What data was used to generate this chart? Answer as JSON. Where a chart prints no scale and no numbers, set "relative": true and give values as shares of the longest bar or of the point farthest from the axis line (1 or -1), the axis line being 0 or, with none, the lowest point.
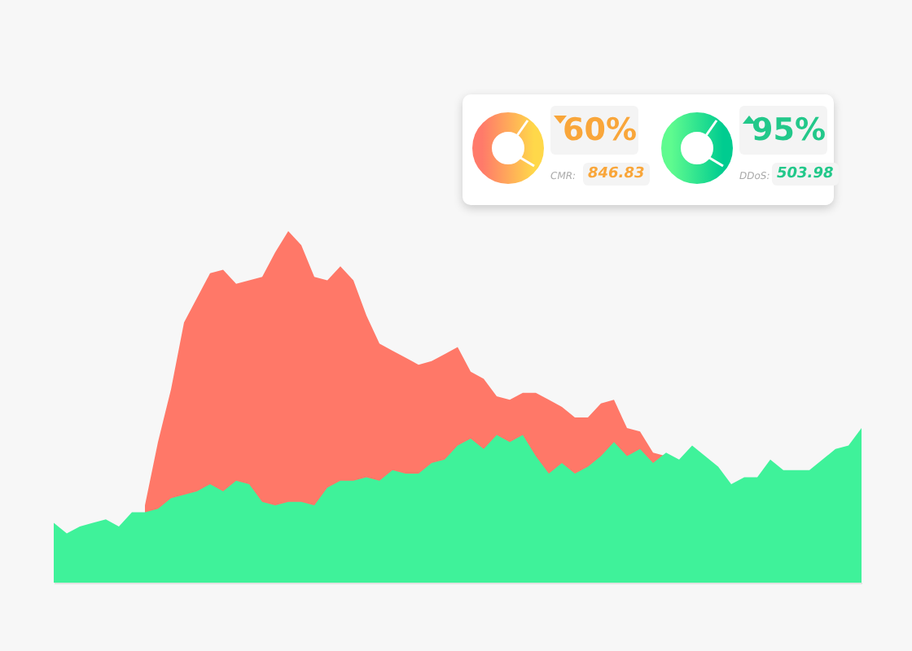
{
  "chart_data": [
    {
      "type": "area",
      "relative": true,
      "categories": [
        null,
        null,
        null,
        null,
        null,
        null,
        null,
        null,
        null,
        null,
        null,
        null,
        null,
        null,
        null,
        null,
        null,
        null,
        null,
        null,
        null,
        null,
        null,
        null,
        null,
        null,
        null,
        null,
        null,
        null,
        null,
        null,
        null,
        null,
        null,
        null,
        null,
        null,
        null,
        null,
        null,
        null,
        null,
        null,
        null,
        null,
        null,
        null,
        null,
        null,
        null,
        null,
        null,
        null,
        null,
        null,
        null,
        null,
        null,
        null,
        null,
        null,
        null
      ],
      "series": [
        {
          "color": "#ff7868",
          "values": [
            null,
            null,
            null,
            null,
            null,
            null,
            null,
            0.22,
            0.4,
            0.55,
            0.74,
            0.81,
            0.88,
            0.89,
            0.85,
            0.86,
            0.87,
            0.94,
            1,
            0.96,
            0.87,
            0.86,
            0.9,
            0.86,
            0.76,
            0.68,
            0.66,
            0.64,
            0.62,
            0.63,
            0.65,
            0.67,
            0.6,
            0.58,
            0.53,
            0.52,
            0.54,
            0.54,
            0.52,
            0.5,
            0.47,
            0.47,
            0.51,
            0.52,
            0.44,
            0.43,
            0.37,
            0.36,
            null,
            null,
            null,
            null,
            null,
            null,
            null,
            null,
            null,
            null,
            null,
            null,
            null,
            null,
            null
          ]
        },
        {
          "color": "#3ff29a",
          "values": [
            0.17,
            0.14,
            0.16,
            0.17,
            0.18,
            0.16,
            0.2,
            0.2,
            0.21,
            0.24,
            0.25,
            0.26,
            0.28,
            0.26,
            0.29,
            0.28,
            0.23,
            0.22,
            0.23,
            0.23,
            0.22,
            0.27,
            0.29,
            0.29,
            0.3,
            0.29,
            0.32,
            0.31,
            0.31,
            0.34,
            0.35,
            0.39,
            0.41,
            0.38,
            0.42,
            0.4,
            0.42,
            0.36,
            0.31,
            0.34,
            0.31,
            0.33,
            0.36,
            0.4,
            0.36,
            0.38,
            0.34,
            0.37,
            0.35,
            0.39,
            0.36,
            0.33,
            0.28,
            0.3,
            0.3,
            0.35,
            0.32,
            0.32,
            0.32,
            0.35,
            0.38,
            0.39,
            0.44
          ]
        }
      ]
    },
    {
      "type": "other",
      "annotations": [
        "60%",
        "CMR:",
        "846.83",
        "95%",
        "DDoS:",
        "503.98"
      ]
    }
  ]
}
